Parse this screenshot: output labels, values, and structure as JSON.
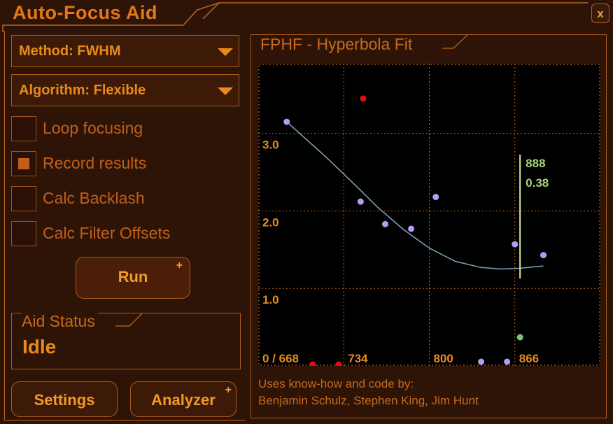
{
  "window": {
    "title": "Auto-Focus Aid",
    "close_label": "x"
  },
  "method": {
    "label": "Method: FWHM"
  },
  "algorithm": {
    "label": "Algorithm: Flexible"
  },
  "options": [
    {
      "label": "Loop focusing",
      "checked": false
    },
    {
      "label": "Record results",
      "checked": true
    },
    {
      "label": "Calc Backlash",
      "checked": false
    },
    {
      "label": "Calc Filter Offsets",
      "checked": false
    }
  ],
  "run": {
    "label": "Run",
    "plus": "+"
  },
  "aid_status": {
    "header": "Aid Status",
    "value": "Idle"
  },
  "buttons": {
    "settings": "Settings",
    "analyzer": "Analyzer",
    "analyzer_plus": "+"
  },
  "colors": {
    "accent": "#e88a1c",
    "grid": "#c0661a",
    "curve": "#7fa6b8",
    "marker": "#d4e89a",
    "readout": "#a6d47a",
    "point": "#b89af0",
    "rejected": "#e01010",
    "best": "#7ac47a"
  },
  "chart_data": {
    "type": "scatter",
    "title": "FPHF - Hyperbola Fit",
    "x_ticks": [
      "0 / 668",
      "734",
      "800",
      "866"
    ],
    "y_ticks": [
      "3.0",
      "2.0",
      "1.0"
    ],
    "xlim": [
      668,
      932
    ],
    "ylim": [
      0,
      3.9
    ],
    "points": [
      [
        690,
        3.15
      ],
      [
        747,
        2.12
      ],
      [
        766,
        1.83
      ],
      [
        786,
        1.77
      ],
      [
        805,
        2.18
      ],
      [
        866,
        1.57
      ],
      [
        888,
        1.43
      ],
      [
        840,
        -0.15
      ],
      [
        860,
        -0.05
      ]
    ],
    "rejected_points": [
      [
        749,
        3.45
      ],
      [
        710,
        -0.18
      ],
      [
        730,
        -0.2
      ]
    ],
    "best_point": [
      870,
      0.37
    ],
    "fit_curve": [
      [
        690,
        3.15
      ],
      [
        700,
        3.0
      ],
      [
        720,
        2.7
      ],
      [
        740,
        2.38
      ],
      [
        760,
        2.05
      ],
      [
        780,
        1.76
      ],
      [
        800,
        1.52
      ],
      [
        820,
        1.35
      ],
      [
        840,
        1.27
      ],
      [
        855,
        1.25
      ],
      [
        870,
        1.26
      ],
      [
        888,
        1.29
      ]
    ],
    "focus_position": 870,
    "readout": {
      "position": "888",
      "value": "0.38"
    }
  },
  "credits": {
    "line1": "Uses know-how and code by:",
    "line2": "Benjamin Schulz, Stephen King, Jim Hunt"
  }
}
